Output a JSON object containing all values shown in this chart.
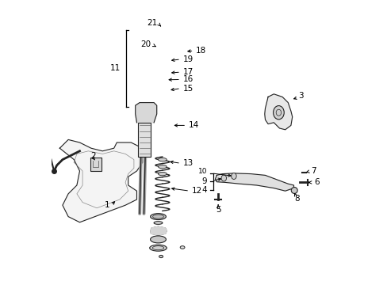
{
  "title": "",
  "background_color": "#ffffff",
  "fig_width": 4.89,
  "fig_height": 3.6,
  "dpi": 100
}
